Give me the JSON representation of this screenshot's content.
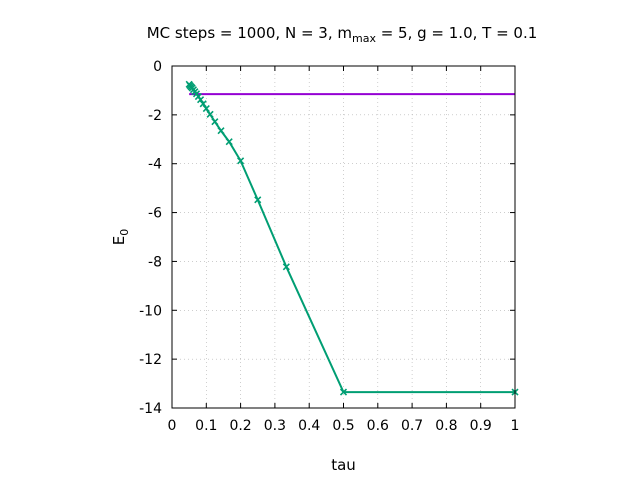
{
  "chart_data": {
    "type": "line",
    "title": {
      "prefix": "MC steps = 1000, N = 3, m",
      "sub": "max",
      "suffix": " = 5, g = 1.0, T = 0.1"
    },
    "xlabel": "tau",
    "ylabel": {
      "main": "E",
      "sub": "0"
    },
    "xlim": [
      0,
      1
    ],
    "ylim": [
      -14,
      0
    ],
    "xticks": [
      0,
      0.1,
      0.2,
      0.3,
      0.4,
      0.5,
      0.6,
      0.7,
      0.8,
      0.9,
      1
    ],
    "xtick_labels": [
      "0",
      "0.1",
      "0.2",
      "0.3",
      "0.4",
      "0.5",
      "0.6",
      "0.7",
      "0.8",
      "0.9",
      "1"
    ],
    "yticks": [
      0,
      -2,
      -4,
      -6,
      -8,
      -10,
      -12,
      -14
    ],
    "ytick_labels": [
      "0",
      "-2",
      "-4",
      "-6",
      "-8",
      "-10",
      "-12",
      "-14"
    ],
    "grid": true,
    "series": [
      {
        "color": "#9400d3",
        "marker": "none",
        "x": [
          0.05,
          1.0
        ],
        "y": [
          -1.15,
          -1.15
        ]
      },
      {
        "color": "#009e73",
        "marker": "x",
        "x": [
          0.05,
          0.0526,
          0.0556,
          0.0588,
          0.0625,
          0.0667,
          0.0714,
          0.0769,
          0.0833,
          0.0909,
          0.1,
          0.1111,
          0.125,
          0.1429,
          0.1667,
          0.2,
          0.25,
          0.3333,
          0.5,
          1.0
        ],
        "y": [
          -0.75,
          -0.8,
          -0.85,
          -0.9,
          -0.97,
          -1.05,
          -1.14,
          -1.25,
          -1.38,
          -1.55,
          -1.74,
          -1.98,
          -2.28,
          -2.65,
          -3.1,
          -3.88,
          -5.48,
          -8.22,
          -13.35,
          -13.35
        ]
      }
    ]
  }
}
